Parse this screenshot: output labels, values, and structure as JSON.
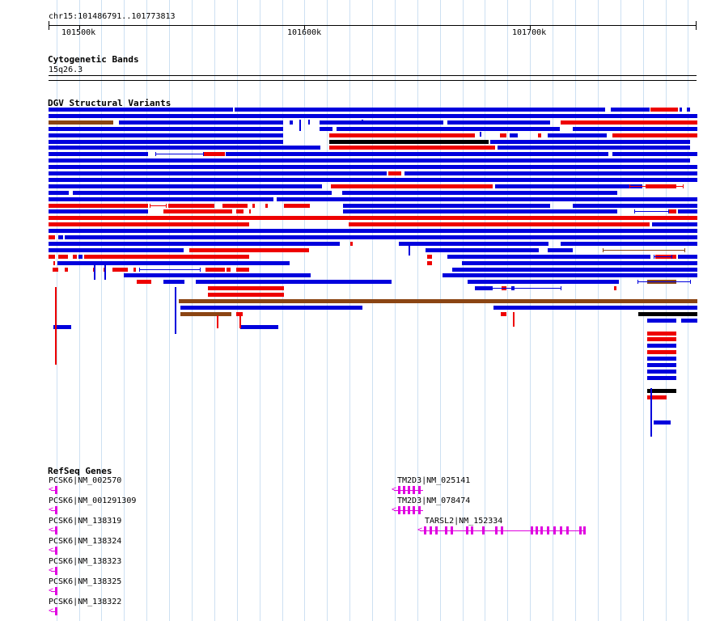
{
  "location": "chr15:101486791..101773813",
  "ruler": {
    "ticks": [
      "101500k",
      "101600k",
      "101700k"
    ]
  },
  "tracks": {
    "cytoband": {
      "title": "Cytogenetic Bands",
      "band": "15q26.3"
    },
    "dgv": {
      "title": "DGV Structural Variants"
    },
    "refseq": {
      "title": "RefSeq Genes",
      "genes": [
        {
          "label": "PCSK6|NM_002570"
        },
        {
          "label": "PCSK6|NM_001291309"
        },
        {
          "label": "PCSK6|NM_138319"
        },
        {
          "label": "PCSK6|NM_138324"
        },
        {
          "label": "PCSK6|NM_138323"
        },
        {
          "label": "PCSK6|NM_138325"
        },
        {
          "label": "PCSK6|NM_138322"
        },
        {
          "label": "TM2D3|NM_025141"
        },
        {
          "label": "TM2D3|NM_078474"
        },
        {
          "label": "TARSL2|NM_152334"
        }
      ]
    }
  },
  "colors": {
    "gain": "#0000dd",
    "loss": "#ee0000",
    "complex": "#8b4513",
    "other": "#000000",
    "gene": "#e000e0",
    "grid": "#cde0f2"
  }
}
